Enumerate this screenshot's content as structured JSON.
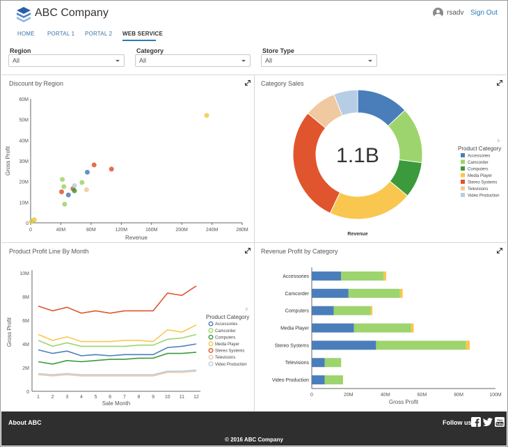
{
  "header": {
    "company": "ABC Company",
    "username": "rsadv",
    "signout_label": "Sign Out"
  },
  "nav": {
    "items": [
      {
        "label": "HOME"
      },
      {
        "label": "PORTAL 1"
      },
      {
        "label": "PORTAL 2"
      },
      {
        "label": "WEB SERVICE",
        "active": true
      }
    ]
  },
  "filters": {
    "region": {
      "label": "Region",
      "value": "All"
    },
    "category": {
      "label": "Category",
      "value": "All"
    },
    "store_type": {
      "label": "Store Type",
      "value": "All"
    }
  },
  "panels": {
    "discount": {
      "title": "Discount by Region"
    },
    "category_sales": {
      "title": "Category Sales",
      "center_value": "1.1B",
      "axis_label": "Revenue"
    },
    "profit_line": {
      "title": "Product Profit Line By Month"
    },
    "revenue_profit": {
      "title": "Revenue Profit by Category"
    }
  },
  "legend_title": "Product Category",
  "footer": {
    "about": "About ABC",
    "follow_us": "Follow us:",
    "copyright": "© 2016 ABC Company"
  },
  "colors": {
    "Accessories": "#4a7ebb",
    "Camcorder": "#9dd46d",
    "Computers": "#3b9a3b",
    "Media Player": "#f9c74f",
    "Stereo Systems": "#e0552d",
    "Televisions": "#f0c9a0",
    "Video Production": "#b6cde6",
    "accent": "#2a7ab5"
  },
  "chart_data": [
    {
      "type": "scatter",
      "title": "Discount by Region",
      "xlabel": "Revenue",
      "ylabel": "Gross Profit",
      "x_ticks": [
        "0",
        "40M",
        "80M",
        "120M",
        "160M",
        "200M",
        "240M",
        "280M"
      ],
      "y_ticks": [
        "0",
        "10M",
        "20M",
        "30M",
        "40M",
        "50M",
        "60M"
      ],
      "xlim": [
        0,
        280
      ],
      "ylim": [
        0,
        60
      ],
      "unit": "M",
      "points": [
        {
          "x": 1,
          "y": 0.5,
          "color": "#f9c74f"
        },
        {
          "x": 3,
          "y": 1,
          "color": "#9dd46d"
        },
        {
          "x": 5,
          "y": 1.5,
          "color": "#f9c74f"
        },
        {
          "x": 42,
          "y": 21,
          "color": "#9dd46d"
        },
        {
          "x": 41,
          "y": 15,
          "color": "#e0552d"
        },
        {
          "x": 44,
          "y": 17.5,
          "color": "#9dd46d"
        },
        {
          "x": 45,
          "y": 9,
          "color": "#9dd46d"
        },
        {
          "x": 50,
          "y": 13.5,
          "color": "#4a7ebb"
        },
        {
          "x": 56,
          "y": 16.5,
          "color": "#e0552d"
        },
        {
          "x": 58,
          "y": 18,
          "color": "#b6cde6"
        },
        {
          "x": 58,
          "y": 15.5,
          "color": "#3b9a3b"
        },
        {
          "x": 68,
          "y": 19.5,
          "color": "#9dd46d"
        },
        {
          "x": 74,
          "y": 16,
          "color": "#f0c9a0"
        },
        {
          "x": 75,
          "y": 24.5,
          "color": "#4a7ebb"
        },
        {
          "x": 84,
          "y": 28,
          "color": "#e0552d"
        },
        {
          "x": 107,
          "y": 26,
          "color": "#e0552d"
        },
        {
          "x": 233,
          "y": 52,
          "color": "#f9c74f"
        }
      ]
    },
    {
      "type": "pie",
      "title": "Category Sales",
      "center_label": "1.1B",
      "xlabel": "Revenue",
      "legend_title": "Product Category",
      "slices": [
        {
          "name": "Accessories",
          "value": 13,
          "color": "#4a7ebb"
        },
        {
          "name": "Camcorder",
          "value": 14,
          "color": "#9dd46d"
        },
        {
          "name": "Computers",
          "value": 9,
          "color": "#3b9a3b"
        },
        {
          "name": "Media Player",
          "value": 21,
          "color": "#f9c74f"
        },
        {
          "name": "Stereo Systems",
          "value": 29,
          "color": "#e0552d"
        },
        {
          "name": "Televisions",
          "value": 8,
          "color": "#f0c9a0"
        },
        {
          "name": "Video Production",
          "value": 6,
          "color": "#b6cde6"
        }
      ]
    },
    {
      "type": "line",
      "title": "Product Profit Line By Month",
      "xlabel": "Sale Month",
      "ylabel": "Gross Profit",
      "x": [
        1,
        2,
        3,
        4,
        5,
        6,
        7,
        8,
        9,
        10,
        11,
        12
      ],
      "y_ticks": [
        "0",
        "2M",
        "4M",
        "6M",
        "8M",
        "10M"
      ],
      "ylim": [
        0,
        10
      ],
      "unit": "M",
      "legend_title": "Product Category",
      "series": [
        {
          "name": "Accessories",
          "color": "#4a7ebb",
          "values": [
            3.5,
            3.2,
            3.4,
            3.0,
            3.1,
            3.0,
            3.1,
            3.1,
            3.1,
            3.7,
            3.8,
            4.0
          ]
        },
        {
          "name": "Camcorder",
          "color": "#9dd46d",
          "values": [
            4.3,
            3.8,
            4.1,
            3.8,
            3.8,
            3.8,
            3.8,
            3.9,
            3.9,
            4.4,
            4.5,
            4.8
          ]
        },
        {
          "name": "Computers",
          "color": "#3b9a3b",
          "values": [
            2.5,
            2.3,
            2.6,
            2.5,
            2.6,
            2.7,
            2.7,
            2.8,
            2.8,
            3.2,
            3.2,
            3.3
          ]
        },
        {
          "name": "Media Player",
          "color": "#f9c74f",
          "values": [
            4.8,
            4.3,
            4.6,
            4.2,
            4.2,
            4.2,
            4.3,
            4.3,
            4.2,
            5.2,
            5.0,
            5.6
          ]
        },
        {
          "name": "Stereo Systems",
          "color": "#e0552d",
          "values": [
            7.2,
            6.8,
            7.1,
            6.6,
            6.8,
            6.6,
            6.8,
            6.8,
            6.8,
            8.3,
            8.1,
            8.9
          ]
        },
        {
          "name": "Televisions",
          "color": "#f0c9a0",
          "values": [
            1.4,
            1.3,
            1.4,
            1.3,
            1.3,
            1.3,
            1.3,
            1.3,
            1.3,
            1.6,
            1.6,
            1.7
          ]
        },
        {
          "name": "Video Production",
          "color": "#b6cde6",
          "values": [
            1.5,
            1.4,
            1.5,
            1.4,
            1.4,
            1.4,
            1.4,
            1.4,
            1.4,
            1.7,
            1.7,
            1.8
          ]
        }
      ]
    },
    {
      "type": "bar",
      "orientation": "horizontal",
      "stacked": true,
      "title": "Revenue Profit by Category",
      "xlabel": "Gross Profit",
      "x_ticks": [
        "0",
        "20M",
        "40M",
        "60M",
        "80M",
        "100M"
      ],
      "xlim": [
        0,
        100
      ],
      "unit": "M",
      "categories": [
        "Accessories",
        "Camcorder",
        "Computers",
        "Media Player",
        "Stereo Systems",
        "Televisions",
        "Video Production"
      ],
      "series": [
        {
          "color": "#4a7ebb",
          "values": [
            16,
            20,
            12,
            23,
            35,
            7,
            7
          ]
        },
        {
          "color": "#9dd46d",
          "values": [
            23,
            28,
            20,
            31,
            49,
            9,
            10
          ]
        },
        {
          "color": "#f9c74f",
          "values": [
            1.5,
            1.5,
            1,
            1.5,
            2,
            0,
            0
          ]
        }
      ]
    }
  ]
}
